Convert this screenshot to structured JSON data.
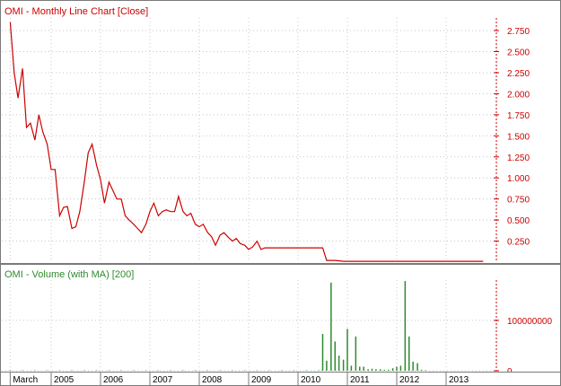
{
  "colors": {
    "background": "#ffffff",
    "border": "#7a7a7a",
    "grid": "#c8c8c8",
    "price_line": "#cc0000",
    "price_title": "#cc0000",
    "volume_bar": "#2e8b2e",
    "volume_title": "#2e8b2e",
    "axis_text": "#cc0000",
    "date_text": "#000000"
  },
  "chart_data": [
    {
      "type": "line",
      "title": "OMI - Monthly Line Chart [Close]",
      "x_tick_labels": [
        "March",
        "2005",
        "2006",
        "2007",
        "2008",
        "2009",
        "2010",
        "2011",
        "2012",
        "2013"
      ],
      "y_tick_labels": [
        "0.250",
        "0.500",
        "0.750",
        "1.000",
        "1.250",
        "1.500",
        "1.750",
        "2.000",
        "2.250",
        "2.500",
        "2.750"
      ],
      "ylim": [
        0,
        2.9
      ],
      "xlim": [
        2004.0,
        2014.0
      ],
      "grid": true,
      "series": [
        {
          "x": [
            2004.17,
            2004.25,
            2004.33,
            2004.42,
            2004.5,
            2004.58,
            2004.67,
            2004.75,
            2004.83,
            2004.92,
            2005.0,
            2005.08,
            2005.17,
            2005.25,
            2005.33,
            2005.42,
            2005.5,
            2005.58,
            2005.67,
            2005.75,
            2005.83,
            2005.92,
            2006.0,
            2006.08,
            2006.17,
            2006.25,
            2006.33,
            2006.42,
            2006.5,
            2006.58,
            2006.67,
            2006.75,
            2006.83,
            2006.92,
            2007.0,
            2007.08,
            2007.17,
            2007.25,
            2007.33,
            2007.42,
            2007.5,
            2007.58,
            2007.67,
            2007.75,
            2007.83,
            2007.92,
            2008.0,
            2008.08,
            2008.17,
            2008.25,
            2008.33,
            2008.42,
            2008.5,
            2008.58,
            2008.67,
            2008.75,
            2008.83,
            2008.92,
            2009.0,
            2009.08,
            2009.17,
            2009.25,
            2009.33,
            2009.5,
            2009.75,
            2010.0,
            2010.25,
            2010.5,
            2010.58,
            2010.75,
            2010.92,
            2011.0,
            2011.25,
            2011.5,
            2011.75,
            2012.0,
            2012.25,
            2012.5,
            2012.75,
            2013.0,
            2013.25,
            2013.5,
            2013.75
          ],
          "values": [
            2.85,
            2.25,
            1.95,
            2.3,
            1.6,
            1.65,
            1.45,
            1.75,
            1.55,
            1.4,
            1.1,
            1.1,
            0.55,
            0.65,
            0.66,
            0.4,
            0.42,
            0.6,
            0.95,
            1.3,
            1.4,
            1.15,
            0.98,
            0.7,
            0.95,
            0.85,
            0.75,
            0.75,
            0.55,
            0.5,
            0.45,
            0.4,
            0.35,
            0.45,
            0.6,
            0.7,
            0.55,
            0.6,
            0.62,
            0.6,
            0.6,
            0.78,
            0.6,
            0.55,
            0.58,
            0.45,
            0.42,
            0.45,
            0.35,
            0.3,
            0.2,
            0.32,
            0.35,
            0.3,
            0.25,
            0.28,
            0.22,
            0.2,
            0.15,
            0.18,
            0.25,
            0.15,
            0.17,
            0.17,
            0.17,
            0.17,
            0.17,
            0.17,
            0.02,
            0.02,
            0.01,
            0.01,
            0.01,
            0.01,
            0.01,
            0.01,
            0.01,
            0.01,
            0.01,
            0.01,
            0.01,
            0.01,
            0.01
          ]
        }
      ]
    },
    {
      "type": "bar",
      "title": "OMI - Volume (with MA) [200]",
      "y_tick_labels": [
        "0",
        "100000000"
      ],
      "ylim": [
        0,
        180000000
      ],
      "xlim": [
        2004.0,
        2014.0
      ],
      "grid": true,
      "series": [
        {
          "x": [
            2004.17,
            2004.42,
            2004.67,
            2004.92,
            2005.17,
            2005.42,
            2005.67,
            2005.92,
            2006.17,
            2006.42,
            2006.67,
            2006.92,
            2007.17,
            2007.42,
            2007.67,
            2007.92,
            2008.17,
            2008.42,
            2008.67,
            2008.92,
            2009.17,
            2009.42,
            2009.67,
            2009.92,
            2010.17,
            2010.42,
            2010.5,
            2010.58,
            2010.67,
            2010.75,
            2010.83,
            2010.92,
            2011.0,
            2011.08,
            2011.17,
            2011.25,
            2011.33,
            2011.42,
            2011.5,
            2011.58,
            2011.67,
            2011.75,
            2011.83,
            2011.92,
            2012.0,
            2012.08,
            2012.17,
            2012.25,
            2012.33,
            2012.42,
            2012.5,
            2012.58
          ],
          "values": [
            500000,
            500000,
            400000,
            600000,
            500000,
            400000,
            500000,
            600000,
            500000,
            500000,
            400000,
            500000,
            500000,
            600000,
            500000,
            500000,
            400000,
            500000,
            400000,
            400000,
            500000,
            400000,
            500000,
            400000,
            600000,
            700000,
            73000000,
            20000000,
            175000000,
            58000000,
            30000000,
            22000000,
            83000000,
            10000000,
            68000000,
            8000000,
            8000000,
            3000000,
            4000000,
            3000000,
            3000000,
            2000000,
            2000000,
            5000000,
            8000000,
            10000000,
            178000000,
            68000000,
            18000000,
            15000000,
            2000000,
            1000000
          ]
        }
      ]
    }
  ]
}
